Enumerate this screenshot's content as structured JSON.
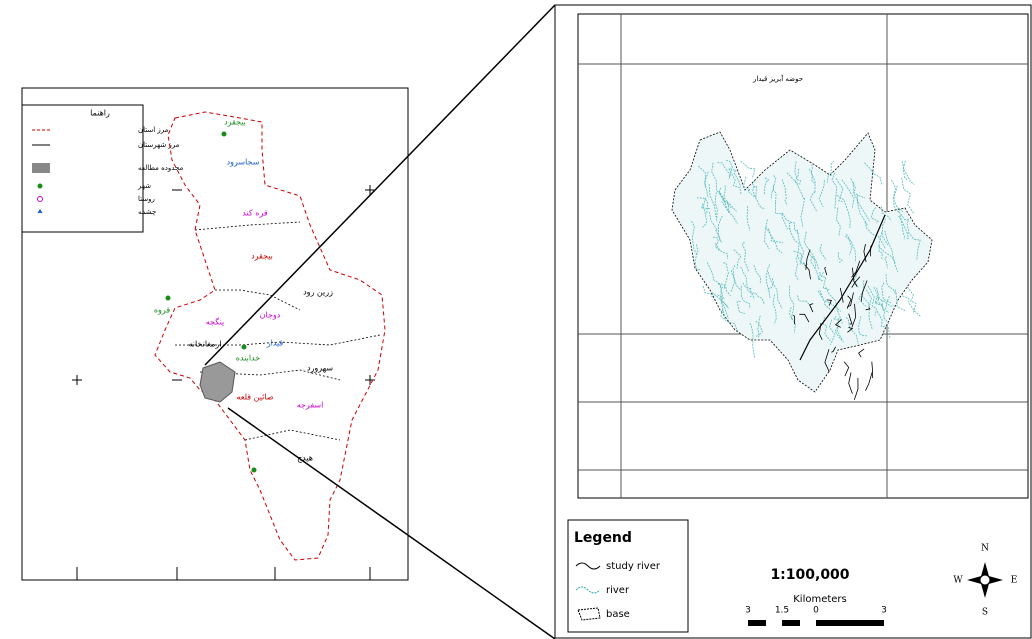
{
  "left_map": {
    "legend_title": "راهنما",
    "legend_items": [
      "مرز استان",
      "مرز شهرستان",
      "محدوده مطالعه",
      "شهر",
      "روستا",
      "چشمه"
    ],
    "place_labels": [
      "بیجقرد",
      "سجاسرود",
      "قره کند",
      "بیجقرد",
      "قروه",
      "ینگجه",
      "ارمغانخانه",
      "خدابنده",
      "قیدار",
      "دوجان",
      "زرین رود",
      "سهرورد",
      "صائین قلعه",
      "اسفرجه",
      "هیدج"
    ]
  },
  "right_map": {
    "title": "حوضه آبریز قیدار",
    "legend": {
      "title": "Legend",
      "items": [
        "study river",
        "river",
        "base"
      ]
    },
    "scale": {
      "ratio": "1:100,000",
      "unit": "Kilometers",
      "labels": [
        "3",
        "1.5",
        "0",
        "3"
      ]
    },
    "north_arrow": {
      "n": "N",
      "s": "S",
      "w": "W",
      "e": "E"
    }
  }
}
